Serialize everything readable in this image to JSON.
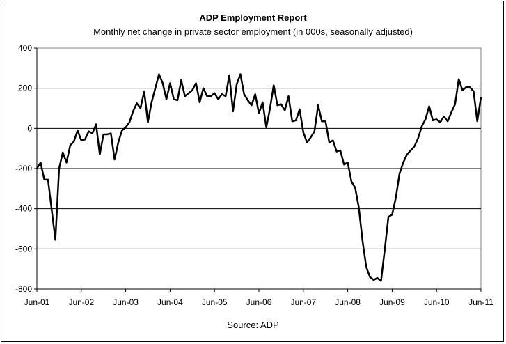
{
  "chart_data": {
    "type": "line",
    "title": "ADP Employment Report",
    "subtitle": "Monthly net change in private sector employment (in 000s, seasonally adjusted)",
    "source": "Source: ADP",
    "xlabel": "",
    "ylabel": "",
    "ylim": [
      -800,
      400
    ],
    "yticks": [
      400,
      200,
      0,
      -200,
      -400,
      -600,
      -800
    ],
    "xticks": [
      "Jun-01",
      "Jun-02",
      "Jun-03",
      "Jun-04",
      "Jun-05",
      "Jun-06",
      "Jun-07",
      "Jun-08",
      "Jun-09",
      "Jun-10",
      "Jun-11"
    ],
    "grid": "horizontal",
    "x_start": "Jun-01",
    "x_end": "Jun-11",
    "series": [
      {
        "values": [
          -200,
          -170,
          -255,
          -255,
          -405,
          -555,
          -200,
          -120,
          -170,
          -85,
          -65,
          -10,
          -60,
          -55,
          -15,
          -25,
          20,
          -130,
          -30,
          -30,
          -25,
          -155,
          -70,
          -10,
          5,
          30,
          85,
          125,
          100,
          185,
          30,
          130,
          200,
          270,
          225,
          145,
          225,
          145,
          140,
          240,
          160,
          175,
          190,
          225,
          130,
          200,
          160,
          160,
          175,
          145,
          170,
          160,
          265,
          85,
          220,
          270,
          170,
          140,
          115,
          170,
          75,
          130,
          5,
          100,
          215,
          115,
          120,
          90,
          160,
          35,
          40,
          95,
          -20,
          -70,
          -45,
          -15,
          115,
          35,
          35,
          -70,
          -60,
          -115,
          -110,
          -180,
          -170,
          -265,
          -295,
          -395,
          -560,
          -690,
          -740,
          -755,
          -745,
          -760,
          -605,
          -440,
          -430,
          -345,
          -225,
          -170,
          -130,
          -110,
          -90,
          -50,
          10,
          45,
          110,
          40,
          45,
          30,
          60,
          35,
          80,
          120,
          245,
          190,
          205,
          205,
          185,
          35,
          155
        ]
      }
    ]
  }
}
